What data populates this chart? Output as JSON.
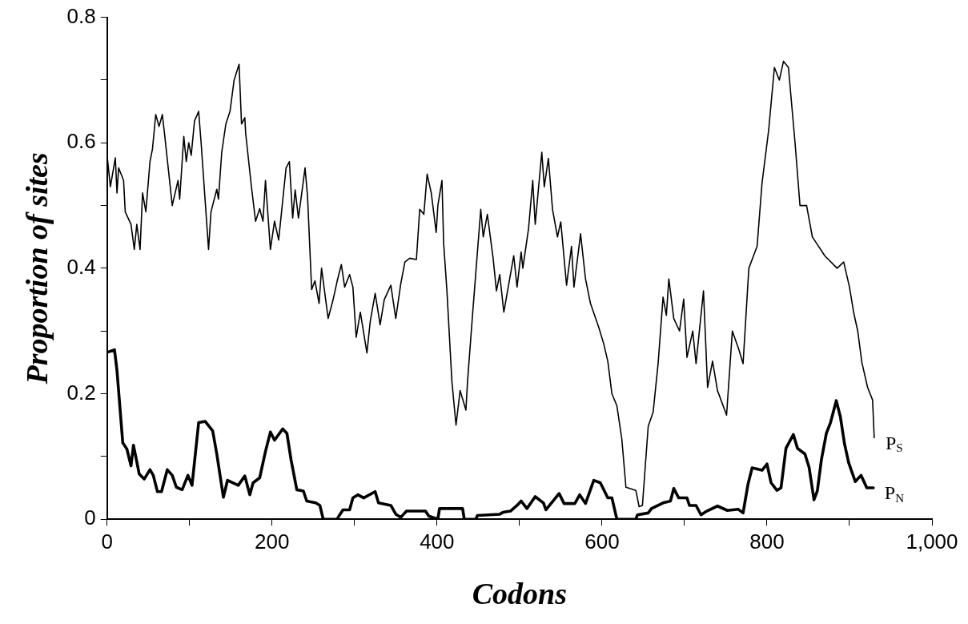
{
  "chart_data": {
    "type": "line",
    "xlabel": "Codons",
    "ylabel": "Proportion of sites",
    "xlim": [
      0,
      1000
    ],
    "ylim": [
      0,
      0.8
    ],
    "xticks": [
      0,
      {
        "value": 100,
        "label": null
      },
      200,
      {
        "value": 300,
        "label": null
      },
      400,
      {
        "value": 500,
        "label": null
      },
      600,
      {
        "value": 700,
        "label": null
      },
      800,
      {
        "value": 900,
        "label": null
      },
      {
        "value": 1000,
        "label": "1,000"
      }
    ],
    "yticks": [
      0,
      {
        "value": 0.1,
        "label": null
      },
      0.2,
      {
        "value": 0.3,
        "label": null
      },
      0.4,
      {
        "value": 0.5,
        "label": null
      },
      0.6,
      {
        "value": 0.7,
        "label": null
      },
      0.8
    ],
    "grid": false,
    "legend": false,
    "marker": "none",
    "line_style": "solid",
    "series": [
      {
        "name": "P$_{S}$",
        "color": "#000000",
        "x": [
          0,
          4,
          10,
          12,
          14,
          20,
          22,
          29,
          33,
          36,
          40,
          43,
          47,
          52,
          55,
          59,
          63,
          67,
          70,
          79,
          86,
          88,
          93,
          96,
          99,
          102,
          106,
          111,
          114,
          123,
          126,
          133,
          135,
          139,
          144,
          149,
          154,
          160,
          163,
          167,
          168,
          175,
          180,
          185,
          189,
          192,
          198,
          203,
          208,
          217,
          221,
          225,
          228,
          232,
          240,
          243,
          248,
          252,
          257,
          260,
          268,
          274,
          279,
          284,
          288,
          294,
          298,
          302,
          307,
          315,
          319,
          325,
          331,
          336,
          344,
          350,
          356,
          361,
          367,
          375,
          379,
          384,
          388,
          393,
          399,
          401,
          406,
          408,
          412,
          418,
          423,
          428,
          435,
          437,
          443,
          453,
          456,
          461,
          468,
          472,
          476,
          481,
          493,
          497,
          502,
          504,
          511,
          516,
          519,
          527,
          530,
          535,
          540,
          546,
          550,
          557,
          563,
          566,
          574,
          580,
          586,
          596,
          602,
          607,
          612,
          618,
          624,
          629,
          641,
          645,
          649,
          656,
          662,
          668,
          674,
          678,
          681,
          687,
          694,
          699,
          703,
          710,
          714,
          723,
          728,
          734,
          740,
          751,
          758,
          766,
          771,
          778,
          788,
          794,
          802,
          809,
          815,
          820,
          826,
          834,
          840,
          848,
          855,
          870,
          885,
          893,
          900,
          905,
          910,
          915,
          922,
          928,
          930
        ],
        "values": [
          0.58,
          0.53,
          0.576,
          0.52,
          0.56,
          0.54,
          0.49,
          0.47,
          0.43,
          0.47,
          0.43,
          0.52,
          0.49,
          0.57,
          0.59,
          0.645,
          0.626,
          0.645,
          0.61,
          0.5,
          0.54,
          0.51,
          0.61,
          0.57,
          0.6,
          0.58,
          0.635,
          0.65,
          0.6,
          0.43,
          0.49,
          0.526,
          0.51,
          0.585,
          0.63,
          0.65,
          0.7,
          0.725,
          0.63,
          0.64,
          0.615,
          0.53,
          0.475,
          0.495,
          0.475,
          0.54,
          0.43,
          0.475,
          0.445,
          0.56,
          0.57,
          0.48,
          0.525,
          0.48,
          0.56,
          0.515,
          0.366,
          0.38,
          0.344,
          0.4,
          0.32,
          0.35,
          0.38,
          0.406,
          0.37,
          0.39,
          0.37,
          0.29,
          0.33,
          0.265,
          0.315,
          0.36,
          0.31,
          0.35,
          0.373,
          0.32,
          0.375,
          0.41,
          0.416,
          0.414,
          0.494,
          0.486,
          0.55,
          0.52,
          0.457,
          0.5,
          0.54,
          0.44,
          0.364,
          0.22,
          0.15,
          0.205,
          0.174,
          0.22,
          0.325,
          0.494,
          0.45,
          0.486,
          0.416,
          0.364,
          0.39,
          0.33,
          0.42,
          0.37,
          0.426,
          0.4,
          0.464,
          0.54,
          0.47,
          0.585,
          0.53,
          0.575,
          0.494,
          0.45,
          0.474,
          0.373,
          0.435,
          0.37,
          0.455,
          0.383,
          0.344,
          0.306,
          0.28,
          0.252,
          0.2,
          0.181,
          0.128,
          0.051,
          0.046,
          0.02,
          0.022,
          0.148,
          0.171,
          0.248,
          0.354,
          0.325,
          0.383,
          0.32,
          0.3,
          0.351,
          0.258,
          0.3,
          0.248,
          0.364,
          0.21,
          0.252,
          0.205,
          0.166,
          0.3,
          0.27,
          0.248,
          0.4,
          0.435,
          0.536,
          0.62,
          0.72,
          0.7,
          0.73,
          0.72,
          0.6,
          0.5,
          0.5,
          0.45,
          0.42,
          0.4,
          0.41,
          0.37,
          0.33,
          0.3,
          0.25,
          0.21,
          0.19,
          0.13
        ]
      },
      {
        "name": "P$_{N}$",
        "color": "#000000",
        "x": [
          0,
          9,
          12,
          19,
          24,
          29,
          32,
          39,
          45,
          52,
          56,
          61,
          66,
          73,
          79,
          84,
          91,
          98,
          103,
          111,
          119,
          128,
          133,
          141,
          146,
          159,
          167,
          173,
          177,
          185,
          192,
          198,
          203,
          213,
          218,
          223,
          230,
          238,
          242,
          253,
          258,
          262,
          279,
          281,
          286,
          294,
          298,
          304,
          311,
          325,
          329,
          344,
          350,
          356,
          363,
          386,
          390,
          401,
          403,
          431,
          433,
          447,
          449,
          476,
          480,
          489,
          497,
          502,
          509,
          519,
          529,
          532,
          548,
          554,
          567,
          573,
          580,
          590,
          598,
          607,
          612,
          618,
          641,
          643,
          656,
          660,
          674,
          683,
          687,
          693,
          703,
          706,
          714,
          720,
          727,
          740,
          752,
          765,
          771,
          777,
          782,
          794,
          800,
          805,
          812,
          817,
          823,
          832,
          837,
          846,
          851,
          857,
          861,
          866,
          872,
          877,
          884,
          889,
          894,
          899,
          907,
          914,
          921,
          929
        ],
        "values": [
          0.266,
          0.27,
          0.237,
          0.122,
          0.112,
          0.085,
          0.118,
          0.072,
          0.064,
          0.079,
          0.07,
          0.044,
          0.044,
          0.079,
          0.07,
          0.051,
          0.047,
          0.07,
          0.054,
          0.154,
          0.156,
          0.141,
          0.104,
          0.035,
          0.062,
          0.054,
          0.069,
          0.039,
          0.058,
          0.066,
          0.108,
          0.139,
          0.126,
          0.144,
          0.137,
          0.095,
          0.047,
          0.045,
          0.029,
          0.026,
          0.022,
          0,
          0,
          0.005,
          0.015,
          0.015,
          0.034,
          0.039,
          0.034,
          0.044,
          0.026,
          0.022,
          0.008,
          0.003,
          0.013,
          0.013,
          0.005,
          0,
          0.017,
          0.017,
          0,
          0,
          0.006,
          0.008,
          0.011,
          0.013,
          0.022,
          0.029,
          0.017,
          0.036,
          0.026,
          0.015,
          0.041,
          0.025,
          0.025,
          0.039,
          0.025,
          0.062,
          0.058,
          0.034,
          0.034,
          0,
          0,
          0.007,
          0.01,
          0.017,
          0.026,
          0.029,
          0.049,
          0.034,
          0.034,
          0.022,
          0.022,
          0.007,
          0.013,
          0.021,
          0.014,
          0.016,
          0.01,
          0.056,
          0.082,
          0.078,
          0.088,
          0.058,
          0.046,
          0.05,
          0.113,
          0.135,
          0.113,
          0.104,
          0.083,
          0.031,
          0.045,
          0.095,
          0.137,
          0.154,
          0.189,
          0.163,
          0.12,
          0.09,
          0.06,
          0.07,
          0.05,
          0.05
        ]
      }
    ]
  }
}
